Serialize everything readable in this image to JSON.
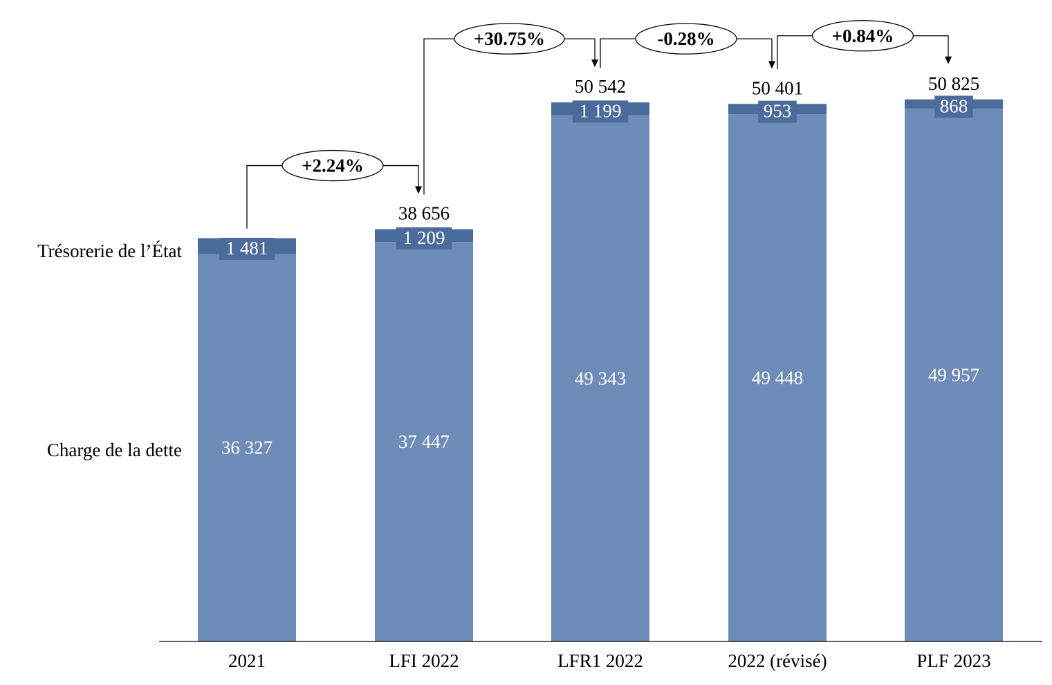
{
  "chart_data": {
    "type": "bar",
    "stacked": true,
    "categories": [
      "2021",
      "LFI 2022",
      "LFR1 2022",
      "2022 (révisé)",
      "PLF 2023"
    ],
    "series": [
      {
        "name": "Charge de la dette",
        "values": [
          36327,
          37447,
          49343,
          49448,
          49957
        ],
        "labels": [
          "36 327",
          "37 447",
          "49 343",
          "49 448",
          "49 957"
        ],
        "color": "#6e8cb8"
      },
      {
        "name": "Trésorerie de l’État",
        "values": [
          1481,
          1209,
          1199,
          953,
          868
        ],
        "labels": [
          "1 481",
          "1 209",
          "1 199",
          "953",
          "868"
        ],
        "color": "#4b6b9b"
      }
    ],
    "totals": [
      null,
      "38 656",
      "50 542",
      "50 401",
      "50 825"
    ],
    "totals_values": [
      37808,
      38656,
      50542,
      50401,
      50825
    ],
    "changes": [
      {
        "from": 0,
        "to": 1,
        "label": "+2.24%"
      },
      {
        "from": 1,
        "to": 2,
        "label": "+30.75%"
      },
      {
        "from": 2,
        "to": 3,
        "label": "-0.28%"
      },
      {
        "from": 3,
        "to": 4,
        "label": "+0.84%"
      }
    ],
    "ylim": [
      0,
      52500
    ],
    "grid": false,
    "legend": "left, inline labels"
  }
}
